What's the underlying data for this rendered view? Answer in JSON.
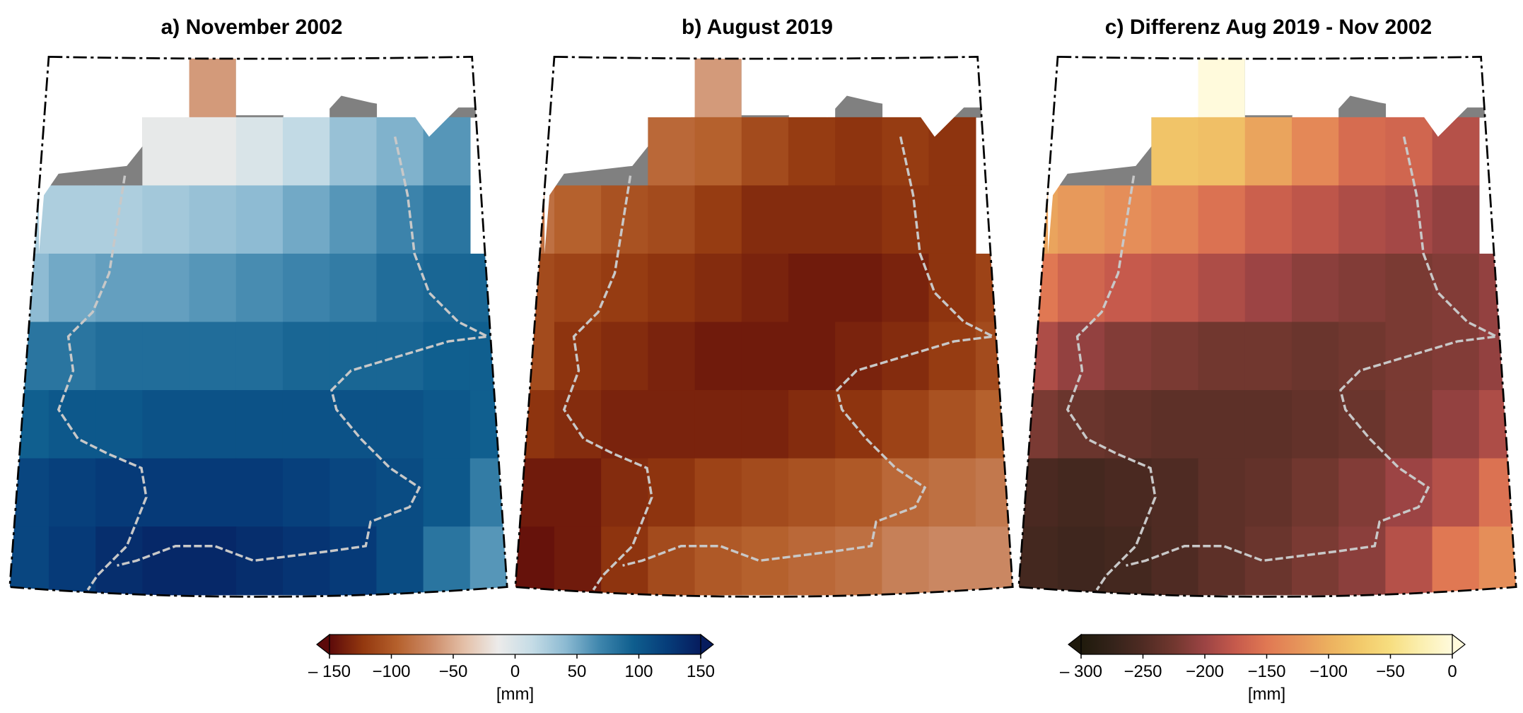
{
  "figure": {
    "panels": [
      {
        "title": "a) November 2002"
      },
      {
        "title": "b) August 2019"
      },
      {
        "title": "c) Differenz Aug 2019 - Nov 2002"
      }
    ],
    "colorbars": [
      {
        "ticks": [
          "– 150",
          "−100",
          "−50",
          "0",
          "50",
          "100",
          "150"
        ],
        "tick_values": [
          -150,
          -100,
          -50,
          0,
          50,
          100,
          150
        ],
        "range": [
          -150,
          150
        ],
        "unit": "[mm]",
        "extend": "both"
      },
      {
        "ticks": [
          "– 300",
          "−250",
          "−200",
          "−150",
          "−100",
          "−50",
          "0"
        ],
        "tick_values": [
          -300,
          -250,
          -200,
          -150,
          -100,
          -50,
          0
        ],
        "range": [
          -300,
          0
        ],
        "unit": "[mm]",
        "extend": "both"
      }
    ]
  },
  "colors": {
    "diverging": [
      "#5c0a0a",
      "#93380f",
      "#b5602c",
      "#cc8a66",
      "#e4c0a8",
      "#ecebea",
      "#c5dce6",
      "#8cbad2",
      "#3f86ad",
      "#0f5e8e",
      "#063d7a",
      "#061c5e"
    ],
    "sequential": [
      "#1f1a0c",
      "#34231a",
      "#4f2b23",
      "#71372f",
      "#9c4444",
      "#c65a4c",
      "#e07853",
      "#e6935a",
      "#ecb05f",
      "#f2c96a",
      "#f7de80",
      "#fbefb0",
      "#fffadc"
    ],
    "masked": "#808080",
    "border": "#c8c8c8"
  },
  "chart_data": [
    {
      "type": "heatmap",
      "title": "a) November 2002",
      "unit": "mm",
      "colorbar": 0,
      "vrange": [
        -150,
        150
      ],
      "note": "null = sea/outside, \"NA\" = masked (gray)",
      "values": [
        [
          null,
          null,
          null,
          null,
          -60,
          "NA",
          null,
          "NA",
          null,
          "NA",
          "NA"
        ],
        [
          null,
          "NA",
          "NA",
          -10,
          -10,
          0,
          15,
          35,
          45,
          60,
          null
        ],
        [
          25,
          25,
          25,
          30,
          35,
          40,
          50,
          60,
          70,
          80,
          null
        ],
        [
          40,
          50,
          55,
          55,
          60,
          65,
          70,
          75,
          85,
          90,
          90
        ],
        [
          80,
          80,
          85,
          85,
          85,
          85,
          90,
          90,
          90,
          95,
          95
        ],
        [
          95,
          100,
          100,
          105,
          105,
          105,
          105,
          105,
          105,
          100,
          95
        ],
        [
          115,
          120,
          125,
          125,
          125,
          125,
          120,
          115,
          110,
          100,
          75
        ],
        [
          115,
          125,
          135,
          140,
          140,
          135,
          130,
          125,
          110,
          80,
          60
        ]
      ]
    },
    {
      "type": "heatmap",
      "title": "b) August 2019",
      "unit": "mm",
      "colorbar": 0,
      "vrange": [
        -150,
        150
      ],
      "values": [
        [
          null,
          null,
          null,
          null,
          -60,
          "NA",
          null,
          "NA",
          null,
          "NA",
          "NA"
        ],
        [
          null,
          "NA",
          "NA",
          -90,
          -95,
          -110,
          -120,
          -125,
          -120,
          -125,
          null
        ],
        [
          -85,
          -95,
          -105,
          -110,
          -120,
          -130,
          -130,
          -130,
          -125,
          -125,
          null
        ],
        [
          -110,
          -115,
          -120,
          -125,
          -130,
          -135,
          -140,
          -140,
          -135,
          -125,
          -115
        ],
        [
          -110,
          -125,
          -130,
          -135,
          -140,
          -140,
          -140,
          -135,
          -130,
          -120,
          -110
        ],
        [
          -125,
          -130,
          -135,
          -135,
          -135,
          -135,
          -130,
          -125,
          -115,
          -105,
          -95
        ],
        [
          -140,
          -140,
          -130,
          -125,
          -115,
          -110,
          -105,
          -100,
          -90,
          -85,
          -80
        ],
        [
          -145,
          -140,
          -125,
          -110,
          -100,
          -95,
          -90,
          -85,
          -75,
          -70,
          -70
        ]
      ]
    },
    {
      "type": "heatmap",
      "title": "c) Differenz Aug 2019 - Nov 2002",
      "unit": "mm",
      "colorbar": 1,
      "vrange": [
        -300,
        0
      ],
      "values": [
        [
          null,
          null,
          null,
          null,
          0,
          "NA",
          null,
          "NA",
          null,
          "NA",
          "NA"
        ],
        [
          null,
          "NA",
          "NA",
          -80,
          -85,
          -110,
          -135,
          -160,
          -165,
          -185,
          null
        ],
        [
          -110,
          -120,
          -130,
          -140,
          -155,
          -170,
          -180,
          -190,
          -195,
          -205,
          null
        ],
        [
          -150,
          -165,
          -175,
          -180,
          -190,
          -200,
          -210,
          -215,
          -220,
          -215,
          -205
        ],
        [
          -190,
          -205,
          -215,
          -220,
          -225,
          -225,
          -230,
          -225,
          -220,
          -215,
          -205
        ],
        [
          -220,
          -230,
          -235,
          -240,
          -240,
          -240,
          -235,
          -230,
          -220,
          -205,
          -190
        ],
        [
          -255,
          -260,
          -255,
          -250,
          -240,
          -235,
          -225,
          -215,
          -200,
          -185,
          -155
        ],
        [
          -260,
          -265,
          -260,
          -250,
          -240,
          -230,
          -220,
          -210,
          -185,
          -150,
          -130
        ]
      ]
    }
  ]
}
